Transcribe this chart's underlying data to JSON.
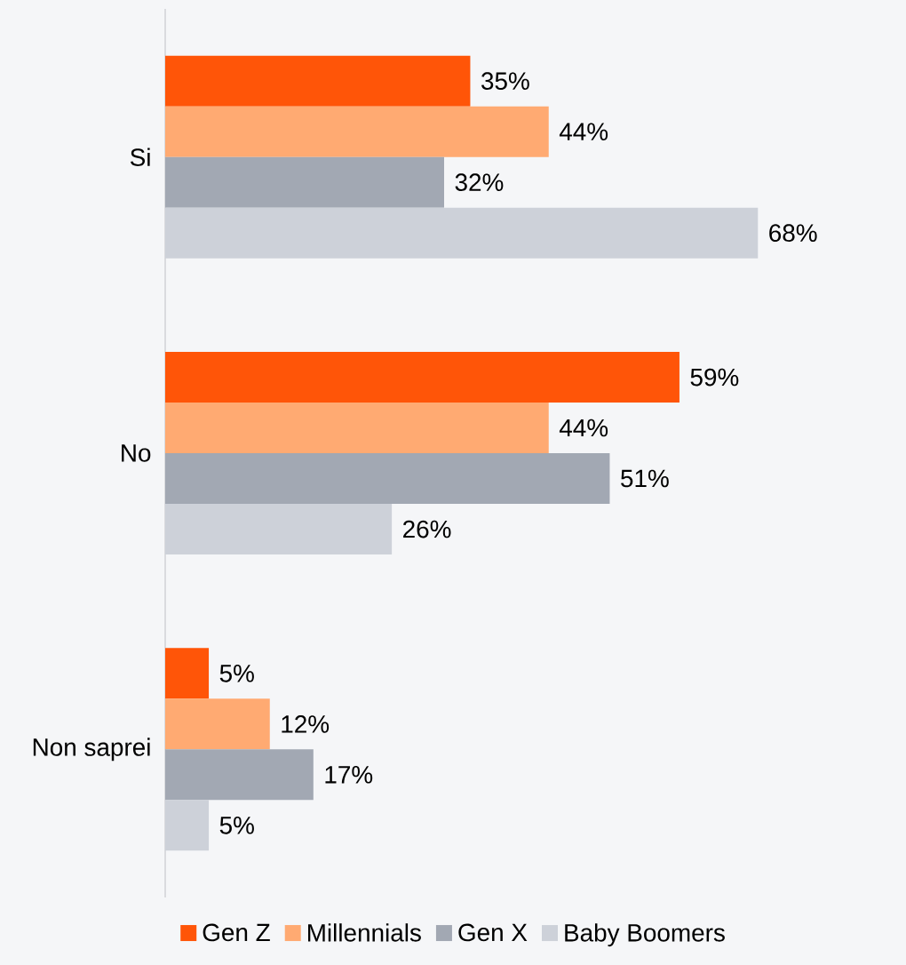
{
  "chart_data": {
    "type": "bar",
    "orientation": "horizontal",
    "categories": [
      "Si",
      "No",
      "Non saprei"
    ],
    "series": [
      {
        "name": "Gen Z",
        "color": "#ff5508",
        "values": [
          35,
          59,
          5
        ],
        "value_labels": [
          "35%",
          "59%",
          "5%"
        ]
      },
      {
        "name": "Millennials",
        "color": "#ffaa72",
        "values": [
          44,
          44,
          12
        ],
        "value_labels": [
          "44%",
          "44%",
          "12%"
        ]
      },
      {
        "name": "Gen X",
        "color": "#a2a8b3",
        "values": [
          32,
          51,
          17
        ],
        "value_labels": [
          "32%",
          "51%",
          "17%"
        ]
      },
      {
        "name": "Baby Boomers",
        "color": "#cdd1d9",
        "values": [
          68,
          26,
          5
        ],
        "value_labels": [
          "68%",
          "26%",
          "5%"
        ]
      }
    ],
    "legend": "bottom",
    "tick_labels": "y"
  }
}
